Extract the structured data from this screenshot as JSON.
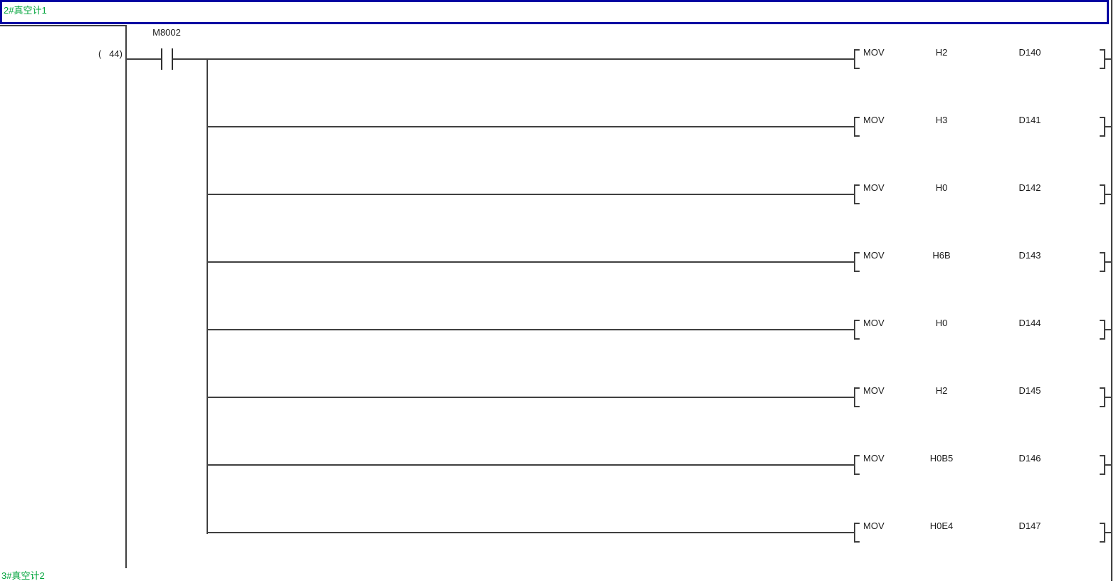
{
  "header": {
    "comment": "2#真空计1"
  },
  "footer": {
    "comment": "3#真空计2"
  },
  "rung": {
    "step_number": "(   44)",
    "contact": {
      "label": "M8002",
      "type": "normally-open-contact"
    },
    "instructions": [
      {
        "op": "MOV",
        "src": "H2",
        "dst": "D140"
      },
      {
        "op": "MOV",
        "src": "H3",
        "dst": "D141"
      },
      {
        "op": "MOV",
        "src": "H0",
        "dst": "D142"
      },
      {
        "op": "MOV",
        "src": "H6B",
        "dst": "D143"
      },
      {
        "op": "MOV",
        "src": "H0",
        "dst": "D144"
      },
      {
        "op": "MOV",
        "src": "H2",
        "dst": "D145"
      },
      {
        "op": "MOV",
        "src": "H0B5",
        "dst": "D146"
      },
      {
        "op": "MOV",
        "src": "H0E4",
        "dst": "D147"
      }
    ]
  },
  "colors": {
    "comment_green": "#00a43b",
    "statement_border_blue": "#0202a2",
    "ladder_line": "#404040",
    "text": "#1a1a1a",
    "background": "#ffffff"
  }
}
